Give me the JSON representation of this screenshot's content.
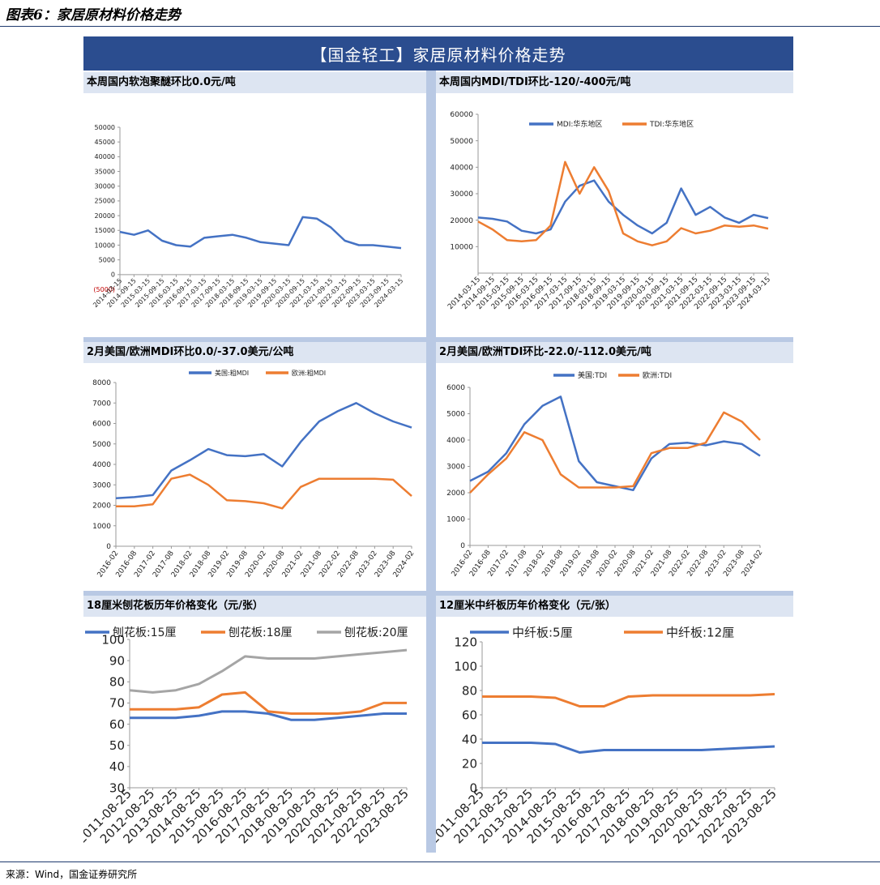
{
  "figure": {
    "title": "图表6：家居原材料价格走势",
    "banner": "【国金轻工】家居原材料价格走势",
    "source": "来源：Wind，国金证券研究所"
  },
  "panels": [
    {
      "title": "本周国内软泡聚醚环比0.0元/吨"
    },
    {
      "title": "本周国内MDI/TDI环比-120/-400元/吨"
    },
    {
      "title": "2月美国/欧洲MDI环比0.0/-37.0美元/公吨"
    },
    {
      "title": "2月美国/欧洲TDI环比-22.0/-112.0美元/吨"
    },
    {
      "title": "18厘米刨花板历年价格变化（元/张）"
    },
    {
      "title": "12厘米中纤板历年价格变化（元/张）"
    }
  ],
  "colors": {
    "blue": "#4472c4",
    "orange": "#ed7d31",
    "gray": "#a5a5a5"
  },
  "chart_data": [
    {
      "type": "line",
      "x": [
        "2014-03-15",
        "2014-09-15",
        "2015-03-15",
        "2015-09-15",
        "2016-03-15",
        "2016-09-15",
        "2017-03-15",
        "2017-09-15",
        "2018-03-15",
        "2018-09-15",
        "2019-03-15",
        "2019-09-15",
        "2020-03-15",
        "2020-09-15",
        "2021-03-15",
        "2021-09-15",
        "2022-03-15",
        "2022-09-15",
        "2023-03-15",
        "2023-09-15",
        "2024-03-15"
      ],
      "series": [
        {
          "values": [
            14500,
            13500,
            15000,
            11500,
            10000,
            9500,
            12500,
            13000,
            13500,
            12500,
            11000,
            10500,
            10000,
            19500,
            19000,
            16000,
            11500,
            10000,
            10000,
            9500,
            9000
          ]
        }
      ],
      "ylim": [
        -5000,
        50000
      ],
      "yticks": [
        "(5000)",
        "0",
        "5000",
        "10000",
        "15000",
        "20000",
        "25000",
        "30000",
        "35000",
        "40000",
        "45000",
        "50000"
      ],
      "legend": "none"
    },
    {
      "type": "line",
      "x": [
        "2014-03-15",
        "2014-09-15",
        "2015-03-15",
        "2015-09-15",
        "2016-03-15",
        "2016-09-15",
        "2017-03-15",
        "2017-09-15",
        "2018-03-15",
        "2018-09-15",
        "2019-03-15",
        "2019-09-15",
        "2020-03-15",
        "2020-09-15",
        "2021-03-15",
        "2021-09-15",
        "2022-03-15",
        "2022-09-15",
        "2023-03-15",
        "2023-09-15",
        "2024-03-15"
      ],
      "series": [
        {
          "name": "MDI:华东地区",
          "values": [
            21000,
            20500,
            19500,
            16000,
            15000,
            16500,
            27000,
            33000,
            35000,
            27000,
            22000,
            18000,
            15000,
            19000,
            32000,
            22000,
            25000,
            21000,
            19000,
            22000,
            20800
          ]
        },
        {
          "name": "TDI:华东地区",
          "values": [
            19500,
            16500,
            12500,
            12000,
            12500,
            18000,
            42000,
            30000,
            40000,
            31000,
            15000,
            12000,
            10500,
            12000,
            17000,
            15000,
            16000,
            18000,
            17500,
            18000,
            16800
          ]
        }
      ],
      "ylim": [
        0,
        60000
      ],
      "yticks": [
        "10000",
        "20000",
        "30000",
        "40000",
        "50000",
        "60000"
      ],
      "legend": "top-left"
    },
    {
      "type": "line",
      "x": [
        "2016-02",
        "2016-08",
        "2017-02",
        "2017-08",
        "2018-02",
        "2018-08",
        "2019-02",
        "2019-08",
        "2020-02",
        "2020-08",
        "2021-02",
        "2021-08",
        "2022-02",
        "2022-08",
        "2023-02",
        "2023-08",
        "2024-02"
      ],
      "series": [
        {
          "name": "美国:粗MDI",
          "values": [
            2350,
            2400,
            2500,
            3700,
            4200,
            4750,
            4450,
            4400,
            4500,
            3900,
            5100,
            6100,
            6600,
            7000,
            6500,
            6100,
            5800
          ]
        },
        {
          "name": "欧洲:粗MDI",
          "values": [
            1950,
            1950,
            2050,
            3300,
            3500,
            3000,
            2250,
            2200,
            2100,
            1850,
            2900,
            3300,
            3300,
            3300,
            3300,
            3250,
            2450
          ]
        }
      ],
      "ylim": [
        0,
        8000
      ],
      "yticks": [
        "0",
        "1000",
        "2000",
        "3000",
        "4000",
        "5000",
        "6000",
        "7000",
        "8000"
      ],
      "legend": "top-center"
    },
    {
      "type": "line",
      "x": [
        "2016-02",
        "2016-08",
        "2017-02",
        "2017-08",
        "2018-02",
        "2018-08",
        "2019-02",
        "2019-08",
        "2020-02",
        "2020-08",
        "2021-02",
        "2021-08",
        "2022-02",
        "2022-08",
        "2023-02",
        "2023-08",
        "2024-02"
      ],
      "series": [
        {
          "name": "美国:TDI",
          "values": [
            2450,
            2800,
            3500,
            4600,
            5300,
            5650,
            3200,
            2400,
            2250,
            2100,
            3300,
            3850,
            3900,
            3800,
            3950,
            3850,
            3400
          ]
        },
        {
          "name": "欧洲:TDI",
          "values": [
            2000,
            2700,
            3300,
            4300,
            4000,
            2700,
            2200,
            2200,
            2200,
            2250,
            3500,
            3700,
            3700,
            3900,
            5050,
            4700,
            4000
          ]
        }
      ],
      "ylim": [
        0,
        6000
      ],
      "yticks": [
        "0",
        "1000",
        "2000",
        "3000",
        "4000",
        "5000",
        "6000"
      ],
      "legend": "top-center"
    },
    {
      "type": "line",
      "x": [
        "2011-08-25",
        "2012-08-25",
        "2013-08-25",
        "2014-08-25",
        "2015-08-25",
        "2016-08-25",
        "2017-08-25",
        "2018-08-25",
        "2019-08-25",
        "2020-08-25",
        "2021-08-25",
        "2022-08-25",
        "2023-08-25"
      ],
      "series": [
        {
          "name": "刨花板:15厘",
          "values": [
            63,
            63,
            63,
            64,
            66,
            66,
            65,
            62,
            62,
            63,
            64,
            65,
            65
          ]
        },
        {
          "name": "刨花板:18厘",
          "values": [
            67,
            67,
            67,
            68,
            74,
            75,
            66,
            65,
            65,
            65,
            66,
            70,
            70
          ]
        },
        {
          "name": "刨花板:20厘",
          "values": [
            76,
            75,
            76,
            79,
            85,
            92,
            91,
            91,
            91,
            92,
            93,
            94,
            95
          ]
        }
      ],
      "ylim": [
        30,
        100
      ],
      "yticks": [
        "30",
        "40",
        "50",
        "60",
        "70",
        "80",
        "90",
        "100"
      ],
      "legend": "top"
    },
    {
      "type": "line",
      "x": [
        "2011-08-25",
        "2012-08-25",
        "2013-08-25",
        "2014-08-25",
        "2015-08-25",
        "2016-08-25",
        "2017-08-25",
        "2018-08-25",
        "2019-08-25",
        "2020-08-25",
        "2021-08-25",
        "2022-08-25",
        "2023-08-25"
      ],
      "series": [
        {
          "name": "中纤板:5厘",
          "values": [
            37,
            37,
            37,
            36,
            29,
            31,
            31,
            31,
            31,
            31,
            32,
            33,
            34
          ]
        },
        {
          "name": "中纤板:12厘",
          "values": [
            75,
            75,
            75,
            74,
            67,
            67,
            75,
            76,
            76,
            76,
            76,
            76,
            77
          ]
        }
      ],
      "ylim": [
        0,
        120
      ],
      "yticks": [
        "0",
        "20",
        "40",
        "60",
        "80",
        "100",
        "120"
      ],
      "legend": "top"
    }
  ]
}
